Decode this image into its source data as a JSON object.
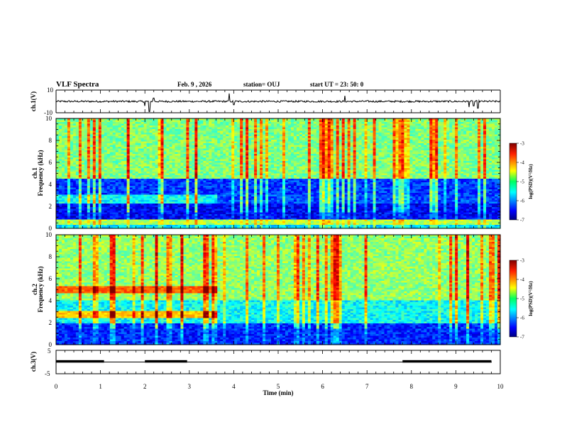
{
  "header": {
    "title": "VLF Spectra",
    "date": "Feb. 9 , 2026",
    "station": "station= OUJ",
    "start": "start  UT =   23: 50: 0"
  },
  "colors": {
    "background": "#ffffff",
    "axis": "#000000",
    "spectrogram_low": "#00008b",
    "spectrogram_high": "#c81e1e"
  },
  "chart_data": [
    {
      "type": "line",
      "name": "ch1-waveform",
      "ylabel": "ch.1(V)",
      "ylim": [
        -10,
        10
      ],
      "yticks": [
        "10",
        "-10"
      ],
      "xlim": [
        0,
        10
      ],
      "baseline_value": 0,
      "noise_amplitude": 0.8,
      "spikes": [
        {
          "t": 2.0,
          "v": -4
        },
        {
          "t": 2.1,
          "v": -9
        },
        {
          "t": 2.2,
          "v": 3
        },
        {
          "t": 3.9,
          "v": 7
        },
        {
          "t": 4.0,
          "v": -3
        },
        {
          "t": 6.5,
          "v": 5
        },
        {
          "t": 9.3,
          "v": -5
        },
        {
          "t": 9.4,
          "v": -4
        },
        {
          "t": 9.5,
          "v": -6
        }
      ]
    },
    {
      "type": "heatmap",
      "name": "ch1-spectrogram",
      "ylabel": "ch.1\nFrequency (kHz)",
      "ylim": [
        0,
        10
      ],
      "xlim": [
        0,
        10
      ],
      "yticks": [
        "0",
        "2",
        "4",
        "6",
        "8",
        "10"
      ],
      "colorbar": {
        "label": "log(PSD)(V²/Hz)",
        "range": [
          -7,
          -3
        ],
        "ticks": [
          "-3",
          "-4",
          "-5",
          "-6",
          "-7"
        ]
      },
      "features": "broadband green-cyan background 4-10 kHz with frequent vertical impulsive bursts; dark-blue quiet bands at 1-2.5 kHz and 3-4.5 kHz; persistent narrowband line near 0.5 kHz; cyan band 2.3-2.8 kHz before 3.6 min"
    },
    {
      "type": "heatmap",
      "name": "ch2-spectrogram",
      "ylabel": "ch.2\nFrequency (kHz)",
      "ylim": [
        0,
        10
      ],
      "xlim": [
        0,
        10
      ],
      "yticks": [
        "0",
        "2",
        "4",
        "6",
        "8",
        "10"
      ],
      "colorbar": {
        "label": "log(PSD)(V²/Hz)",
        "range": [
          -7,
          -3
        ],
        "ticks": [
          "-3",
          "-4",
          "-5",
          "-6",
          "-7"
        ]
      },
      "features": "strong orange-red emission bands near 5 kHz and 2.7 kHz from 0 to 3.6 min; green background 4-10 kHz with vertical impulsive bursts; blue quiet region below 2 kHz"
    },
    {
      "type": "line",
      "name": "ch3-level",
      "ylabel": "ch.3(V)",
      "ylim": [
        -5,
        5
      ],
      "yticks": [
        "5",
        "-5"
      ],
      "xlim": [
        0,
        10
      ],
      "baseline_value": 0,
      "high_intervals": [
        [
          0,
          1.08
        ],
        [
          2.0,
          2.95
        ],
        [
          7.8,
          9.8
        ]
      ],
      "high_value": 0.2
    }
  ],
  "xaxis": {
    "label": "Time  (min)",
    "ticks": [
      "0",
      "1",
      "2",
      "3",
      "4",
      "5",
      "6",
      "7",
      "8",
      "9",
      "10"
    ]
  }
}
